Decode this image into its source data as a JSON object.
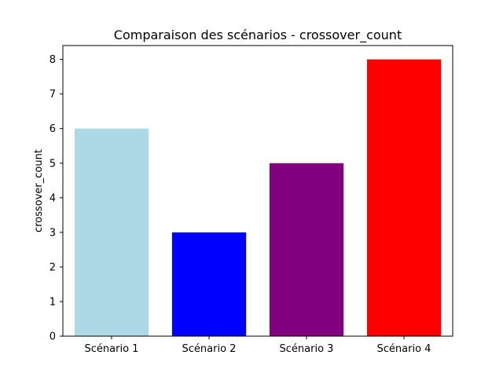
{
  "chart_data": {
    "type": "bar",
    "title": "Comparaison des scénarios - crossover_count",
    "xlabel": "",
    "ylabel": "crossover_count",
    "categories": [
      "Scénario 1",
      "Scénario 2",
      "Scénario 3",
      "Scénario 4"
    ],
    "values": [
      6,
      3,
      5,
      8
    ],
    "colors": [
      "#add8e6",
      "#0000ff",
      "#800080",
      "#ff0000"
    ],
    "ylim": [
      0,
      8.4
    ],
    "yticks": [
      0,
      1,
      2,
      3,
      4,
      5,
      6,
      7,
      8
    ],
    "grid": false,
    "legend": "none"
  }
}
